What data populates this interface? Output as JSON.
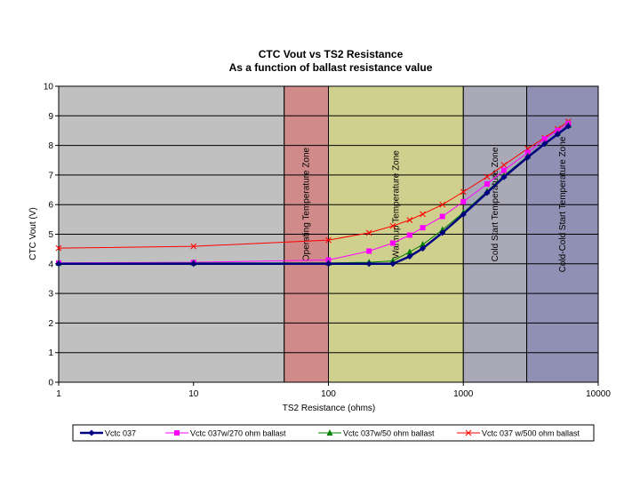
{
  "chart_data": {
    "type": "line",
    "title": "CTC Vout vs TS2 Resistance",
    "subtitle": "As a function of ballast resistance value",
    "xlabel": "TS2 Resistance (ohms)",
    "ylabel": "CTC Vout (V)",
    "xscale": "log",
    "xlim": [
      1,
      10000
    ],
    "ylim": [
      0,
      10
    ],
    "xticks": [
      "1",
      "10",
      "100",
      "1000",
      "10000"
    ],
    "yticks": [
      "0",
      "1",
      "2",
      "3",
      "4",
      "5",
      "6",
      "7",
      "8",
      "9",
      "10"
    ],
    "grid": true,
    "legend_position": "bottom",
    "zones": [
      {
        "label": "",
        "from": 1,
        "to": 47,
        "color": "#c0c0c0"
      },
      {
        "label": "Operating Temperature Zone",
        "from": 47,
        "to": 100,
        "color": "#d08a8a"
      },
      {
        "label": "Warmup Temperature Zone",
        "from": 100,
        "to": 1000,
        "color": "#d0d08e"
      },
      {
        "label": "Cold Start Temperature Zone",
        "from": 1000,
        "to": 2950,
        "color": "#a9a9b8"
      },
      {
        "label": "Cold-Cold Start Temperature Zone",
        "from": 2950,
        "to": 10000,
        "color": "#9090b4"
      }
    ],
    "series": [
      {
        "name": "Vctc 037",
        "color": "#000080",
        "marker": "diamond",
        "width": 2.5,
        "x": [
          1,
          10,
          100,
          200,
          300,
          400,
          500,
          700,
          1000,
          1500,
          2000,
          3000,
          4000,
          5000,
          6000
        ],
        "y": [
          4.0,
          4.0,
          4.0,
          4.0,
          4.0,
          4.25,
          4.52,
          5.05,
          5.67,
          6.4,
          6.93,
          7.6,
          8.05,
          8.38,
          8.65
        ]
      },
      {
        "name": "Vctc 037w/270 ohm ballast",
        "color": "#ff00ff",
        "marker": "square",
        "width": 1,
        "x": [
          1,
          10,
          100,
          200,
          300,
          400,
          500,
          700,
          1000,
          1500,
          2000,
          3000,
          4000,
          5000,
          6000
        ],
        "y": [
          4.03,
          4.05,
          4.13,
          4.43,
          4.7,
          4.97,
          5.22,
          5.6,
          6.1,
          6.7,
          7.16,
          7.76,
          8.22,
          8.5,
          8.74
        ]
      },
      {
        "name": "Vctc 037w/50 ohm ballast",
        "color": "#008000",
        "marker": "triangle",
        "width": 1,
        "x": [
          1,
          10,
          100,
          200,
          300,
          400,
          500,
          700,
          1000,
          1500,
          2000,
          3000,
          4000,
          5000,
          6000
        ],
        "y": [
          4.02,
          4.03,
          4.03,
          4.05,
          4.1,
          4.4,
          4.65,
          5.15,
          5.73,
          6.45,
          6.98,
          7.64,
          8.07,
          8.4,
          8.68
        ]
      },
      {
        "name": "Vctc 037 w/500 ohm ballast",
        "color": "#ff0000",
        "marker": "x",
        "width": 1,
        "x": [
          1,
          10,
          100,
          200,
          300,
          400,
          500,
          700,
          1000,
          1500,
          2000,
          3000,
          4000,
          5000,
          6000
        ],
        "y": [
          4.53,
          4.59,
          4.8,
          5.05,
          5.28,
          5.48,
          5.68,
          6.0,
          6.43,
          6.94,
          7.34,
          7.89,
          8.26,
          8.56,
          8.81
        ]
      }
    ]
  }
}
